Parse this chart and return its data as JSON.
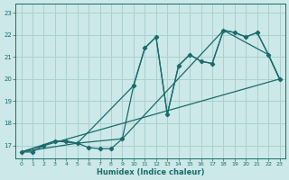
{
  "xlabel": "Humidex (Indice chaleur)",
  "background_color": "#cce8e8",
  "grid_color": "#aad0d0",
  "line_color": "#1a6b6b",
  "xlim": [
    -0.5,
    23.5
  ],
  "ylim": [
    16.4,
    23.4
  ],
  "xticks": [
    0,
    1,
    2,
    3,
    4,
    5,
    6,
    7,
    8,
    9,
    10,
    11,
    12,
    13,
    14,
    15,
    16,
    17,
    18,
    19,
    20,
    21,
    22,
    23
  ],
  "yticks": [
    17,
    18,
    19,
    20,
    21,
    22,
    23
  ],
  "line1_x": [
    0,
    1,
    2,
    3,
    4,
    5,
    6,
    7,
    8,
    9,
    10,
    11,
    12,
    13,
    14,
    15,
    16,
    17,
    18,
    19,
    20,
    21,
    22,
    23
  ],
  "line1_y": [
    16.7,
    16.7,
    17.0,
    17.2,
    17.2,
    17.1,
    16.9,
    16.85,
    16.85,
    17.3,
    19.7,
    21.4,
    21.9,
    18.4,
    20.6,
    21.1,
    20.8,
    20.7,
    22.2,
    22.1,
    21.9,
    22.1,
    21.1,
    20.0
  ],
  "line2_x": [
    0,
    3,
    5,
    10,
    11,
    12,
    13,
    14,
    15,
    16,
    17,
    18,
    19,
    20,
    21,
    22,
    23
  ],
  "line2_y": [
    16.7,
    17.2,
    17.1,
    19.7,
    21.4,
    21.9,
    18.4,
    20.6,
    21.1,
    20.8,
    20.7,
    22.2,
    22.1,
    21.9,
    22.1,
    21.1,
    20.0
  ],
  "line3_x": [
    0,
    5,
    9,
    18,
    22,
    23
  ],
  "line3_y": [
    16.7,
    17.1,
    17.3,
    22.2,
    21.1,
    20.0
  ],
  "line4_x": [
    0,
    23
  ],
  "line4_y": [
    16.7,
    20.0
  ]
}
